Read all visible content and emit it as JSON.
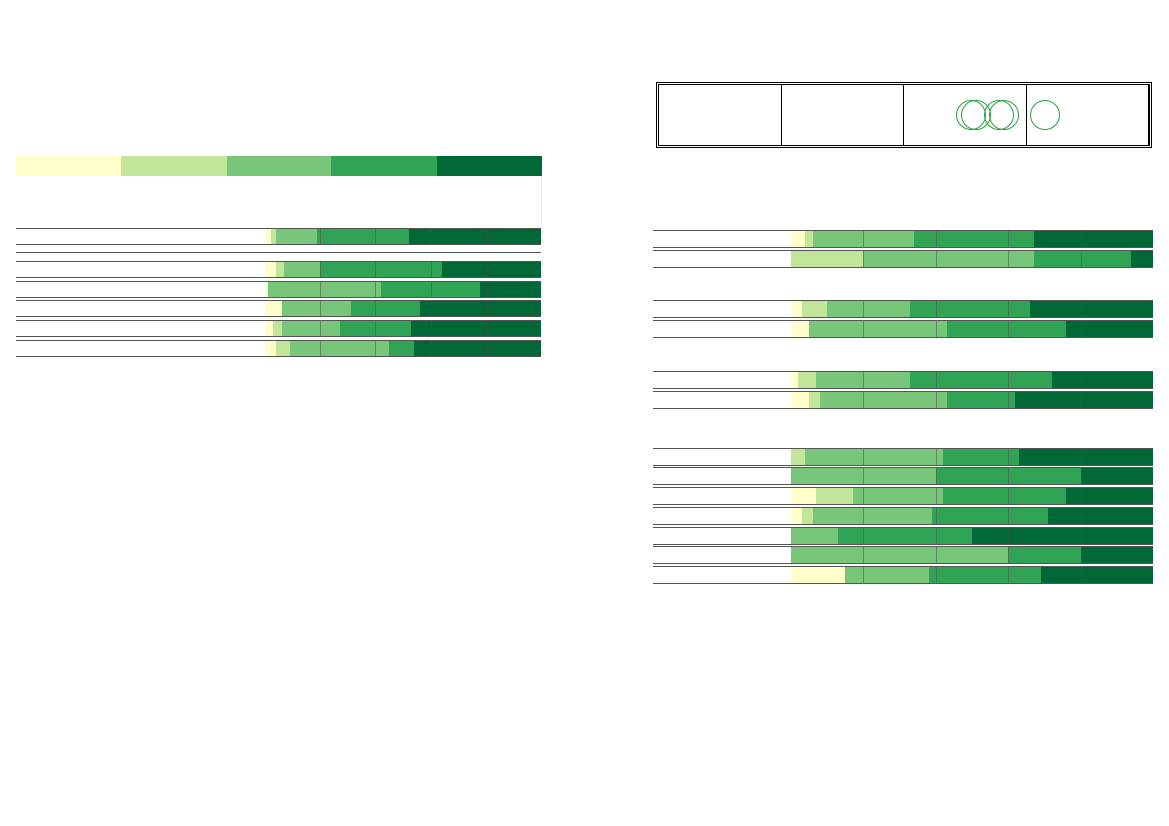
{
  "colors": {
    "scale": [
      "#ffffcc",
      "#c2e699",
      "#78c679",
      "#31a354",
      "#006837"
    ],
    "ring": "#2aa23c",
    "line": "#555555"
  },
  "legend": {
    "swatches": [
      "#ffffcc",
      "#c2e699",
      "#78c679",
      "#31a354",
      "#006837"
    ]
  },
  "table": {
    "icons": [
      "ring-icon",
      "ring-icon",
      "ring-icon",
      "ring-icon",
      "ring-icon"
    ]
  },
  "chart_data": [
    {
      "type": "bar",
      "orientation": "horizontal-stacked-percent",
      "xlim": [
        0,
        100
      ],
      "grid": true,
      "title": "",
      "xlabel": "",
      "ylabel": "",
      "categories": [
        "",
        "",
        "",
        "",
        "",
        ""
      ],
      "series": [
        {
          "values": [
            2,
            4,
            1,
            6,
            3,
            4
          ]
        },
        {
          "values": [
            2,
            3,
            0,
            0,
            3,
            5
          ]
        },
        {
          "values": [
            15,
            13,
            41,
            25,
            21,
            36
          ]
        },
        {
          "values": [
            33,
            44,
            36,
            25,
            26,
            9
          ]
        },
        {
          "values": [
            48,
            36,
            22,
            44,
            47,
            46
          ]
        }
      ]
    },
    {
      "type": "bar",
      "orientation": "horizontal-stacked-percent",
      "xlim": [
        0,
        100
      ],
      "grid": true,
      "title": "",
      "xlabel": "",
      "ylabel": "",
      "categories": [
        "",
        "",
        "",
        "",
        "",
        "",
        "",
        "",
        "",
        "",
        "",
        "",
        "",
        ""
      ],
      "series": [
        {
          "values": [
            4,
            0,
            3,
            5,
            2,
            5,
            0,
            0,
            7,
            3,
            0,
            0,
            15,
            0
          ]
        },
        {
          "values": [
            2,
            20,
            7,
            0,
            5,
            3,
            4,
            0,
            10,
            3,
            0,
            0,
            0,
            0
          ]
        },
        {
          "values": [
            28,
            47,
            23,
            38,
            26,
            35,
            38,
            40,
            25,
            33,
            13,
            60,
            23,
            0
          ]
        },
        {
          "values": [
            33,
            27,
            33,
            33,
            39,
            19,
            21,
            40,
            34,
            32,
            37,
            20,
            31,
            0
          ]
        },
        {
          "values": [
            33,
            6,
            34,
            24,
            28,
            38,
            37,
            20,
            24,
            29,
            50,
            20,
            31,
            0
          ]
        }
      ]
    }
  ]
}
